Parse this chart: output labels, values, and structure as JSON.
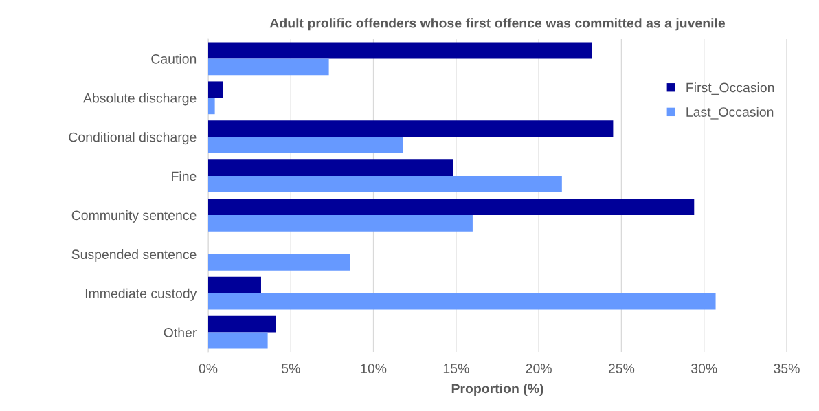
{
  "chart_data": {
    "type": "bar",
    "orientation": "horizontal",
    "title": "Adult prolific offenders whose first offence was committed as a juvenile",
    "xlabel": "Proportion (%)",
    "categories": [
      "Caution",
      "Absolute discharge",
      "Conditional discharge",
      "Fine",
      "Community sentence",
      "Suspended sentence",
      "Immediate custody",
      "Other"
    ],
    "series": [
      {
        "name": "First_Occasion",
        "color": "#000099",
        "values": [
          23.2,
          0.9,
          24.5,
          14.8,
          29.4,
          0,
          3.2,
          4.1
        ]
      },
      {
        "name": "Last_Occasion",
        "color": "#6699ff",
        "values": [
          7.3,
          0.4,
          11.8,
          21.4,
          16.0,
          8.6,
          30.7,
          3.6
        ]
      }
    ],
    "xlim": [
      0,
      35
    ],
    "xticks": [
      {
        "value": 0,
        "label": "0%"
      },
      {
        "value": 5,
        "label": "5%"
      },
      {
        "value": 10,
        "label": "10%"
      },
      {
        "value": 15,
        "label": "15%"
      },
      {
        "value": 20,
        "label": "20%"
      },
      {
        "value": 25,
        "label": "25%"
      },
      {
        "value": 30,
        "label": "30%"
      },
      {
        "value": 35,
        "label": "35%"
      }
    ],
    "grid": "x",
    "legend": "top right"
  }
}
